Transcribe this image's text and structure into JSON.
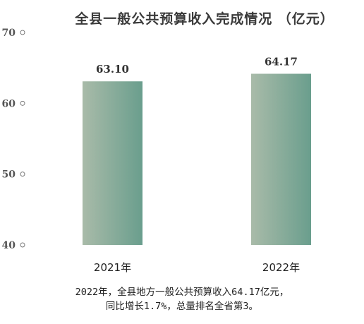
{
  "chart_data": {
    "type": "bar",
    "title": "全县一般公共预算收入完成情况 （亿元）",
    "categories": [
      "2021年",
      "2022年"
    ],
    "values": [
      63.1,
      64.17
    ],
    "value_labels": [
      "63.10",
      "64.17"
    ],
    "ylim": [
      40,
      70
    ],
    "yticks": [
      "40",
      "50",
      "60",
      "70"
    ],
    "grid": false,
    "legend": "none",
    "colors": {
      "bar_left": "#a9bba9",
      "bar_right": "#6a9e8d"
    }
  },
  "footnote": {
    "line1": "2022年，全县地方一般公共预算收入64.17亿元，",
    "line2": "同比增长1.7%，总量排名全省第3。"
  }
}
